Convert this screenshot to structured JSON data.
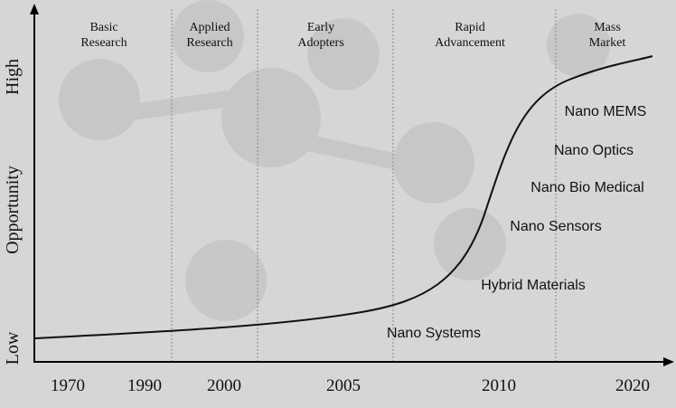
{
  "phases": [
    "Basic Research",
    "Applied Research",
    "Early Adopters",
    "Rapid Advancement",
    "Mass Market"
  ],
  "x_labels": [
    "1970",
    "1990",
    "2000",
    "2005",
    "2010",
    "2020"
  ],
  "y_labels": {
    "low": "Low",
    "middle": "Opportunity",
    "high": "High"
  },
  "annotations": [
    "Nano MEMS",
    "Nano Optics",
    "Nano Bio Medical",
    "Nano Sensors",
    "Hybrid Materials",
    "Nano Systems"
  ]
}
